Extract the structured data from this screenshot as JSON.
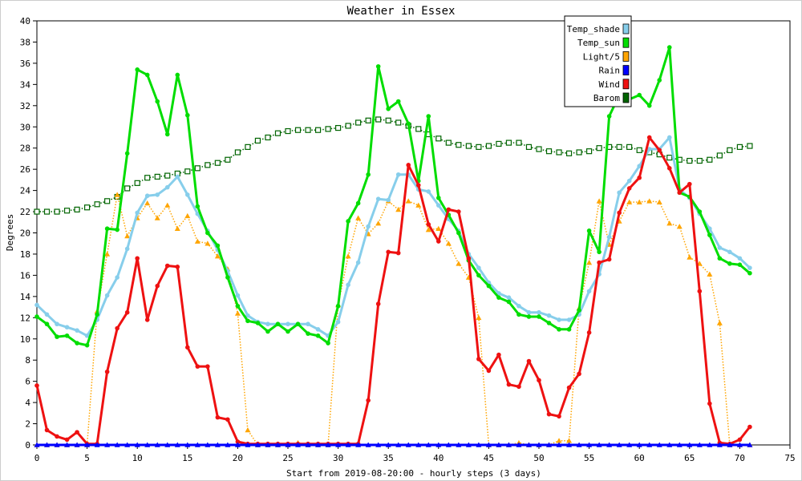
{
  "chart_data": {
    "type": "line",
    "title": "Weather in Essex",
    "xlabel": "Start from 2019-08-20:00 - hourly steps (3 days)",
    "ylabel": "Degrees",
    "xlim": [
      0,
      75
    ],
    "ylim": [
      0,
      40
    ],
    "x_ticks": [
      0,
      5,
      10,
      15,
      20,
      25,
      30,
      35,
      40,
      45,
      50,
      55,
      60,
      65,
      70,
      75
    ],
    "y_ticks": [
      0,
      2,
      4,
      6,
      8,
      10,
      12,
      14,
      16,
      18,
      20,
      22,
      24,
      26,
      28,
      30,
      32,
      34,
      36,
      38,
      40
    ],
    "grid": false,
    "legend_position": "top-right",
    "x": [
      0,
      1,
      2,
      3,
      4,
      5,
      6,
      7,
      8,
      9,
      10,
      11,
      12,
      13,
      14,
      15,
      16,
      17,
      18,
      19,
      20,
      21,
      22,
      23,
      24,
      25,
      26,
      27,
      28,
      29,
      30,
      31,
      32,
      33,
      34,
      35,
      36,
      37,
      38,
      39,
      40,
      41,
      42,
      43,
      44,
      45,
      46,
      47,
      48,
      49,
      50,
      51,
      52,
      53,
      54,
      55,
      56,
      57,
      58,
      59,
      60,
      61,
      62,
      63,
      64,
      65,
      66,
      67,
      68,
      69,
      70,
      71
    ],
    "series": [
      {
        "name": "Temp_shade",
        "color": "#87ceeb",
        "style": "solid",
        "marker": "circle",
        "values": [
          13.2,
          12.3,
          11.4,
          11.1,
          10.8,
          10.3,
          11.8,
          14.1,
          15.8,
          18.5,
          21.9,
          23.5,
          23.6,
          24.3,
          25.3,
          23.6,
          21.8,
          20.2,
          18.4,
          16.4,
          14.1,
          12.2,
          11.6,
          11.4,
          11.4,
          11.4,
          11.4,
          11.4,
          10.9,
          10.3,
          11.6,
          15.1,
          17.2,
          20.6,
          23.2,
          23.1,
          25.5,
          25.5,
          24.1,
          23.9,
          22.6,
          21.3,
          20.2,
          18.0,
          16.7,
          15.3,
          14.3,
          13.9,
          13.1,
          12.5,
          12.5,
          12.2,
          11.8,
          11.8,
          12.3,
          14.5,
          16.1,
          19.6,
          23.8,
          24.9,
          26.3,
          27.9,
          27.9,
          29.0,
          24.1,
          23.3,
          21.8,
          20.4,
          18.6,
          18.2,
          17.6,
          16.7
        ]
      },
      {
        "name": "Temp_sun",
        "color": "#00dd00",
        "style": "solid",
        "marker": "circle",
        "values": [
          12.1,
          11.4,
          10.2,
          10.3,
          9.6,
          9.4,
          12.3,
          20.4,
          20.3,
          27.5,
          35.4,
          34.9,
          32.4,
          29.3,
          34.9,
          31.1,
          22.5,
          20.0,
          18.8,
          15.8,
          13.1,
          11.7,
          11.5,
          10.7,
          11.4,
          10.7,
          11.4,
          10.5,
          10.3,
          9.6,
          13.1,
          21.1,
          22.8,
          25.5,
          35.7,
          31.7,
          32.4,
          30.3,
          24.9,
          31.0,
          23.3,
          21.7,
          20.0,
          17.4,
          16.0,
          15.0,
          13.9,
          13.5,
          12.3,
          12.1,
          12.1,
          11.5,
          10.9,
          10.9,
          12.7,
          20.2,
          18.2,
          31.0,
          33.0,
          32.6,
          33.0,
          32.0,
          34.4,
          37.5,
          23.8,
          23.4,
          22.0,
          19.8,
          17.6,
          17.1,
          17.0,
          16.2
        ]
      },
      {
        "name": "Light/5",
        "color": "#ffa500",
        "style": "dotted",
        "marker": "triangle",
        "values": [
          0,
          0,
          0,
          0,
          0,
          0,
          12.6,
          18.0,
          23.6,
          19.7,
          21.4,
          22.8,
          21.4,
          22.6,
          20.4,
          21.6,
          19.2,
          19.0,
          17.8,
          16.6,
          12.4,
          1.4,
          0,
          0,
          0,
          0,
          0.2,
          0,
          0,
          0,
          13.2,
          17.8,
          21.4,
          19.9,
          20.9,
          23.0,
          22.2,
          23.0,
          22.6,
          20.3,
          20.4,
          19.0,
          17.1,
          15.8,
          12.0,
          0,
          0,
          0,
          0.2,
          0,
          0,
          0,
          0.4,
          0.4,
          12.9,
          17.2,
          23.0,
          18.9,
          21.1,
          22.9,
          22.9,
          23.0,
          22.9,
          20.9,
          20.6,
          17.7,
          17.1,
          16.1,
          11.5,
          0,
          0,
          0
        ]
      },
      {
        "name": "Rain",
        "color": "#0000ff",
        "style": "solid",
        "marker": "triangle",
        "values": [
          0,
          0,
          0,
          0,
          0,
          0,
          0,
          0,
          0,
          0,
          0,
          0,
          0,
          0,
          0,
          0,
          0,
          0,
          0,
          0,
          0,
          0,
          0,
          0,
          0,
          0,
          0,
          0,
          0,
          0,
          0,
          0,
          0,
          0,
          0,
          0,
          0,
          0,
          0,
          0,
          0,
          0,
          0,
          0,
          0,
          0,
          0,
          0,
          0,
          0,
          0,
          0,
          0,
          0,
          0,
          0,
          0,
          0,
          0,
          0,
          0,
          0,
          0,
          0,
          0,
          0,
          0,
          0,
          0,
          0,
          0,
          0
        ]
      },
      {
        "name": "Wind",
        "color": "#ee1111",
        "style": "solid",
        "marker": "circle",
        "values": [
          5.6,
          1.4,
          0.8,
          0.5,
          1.2,
          0.1,
          0.1,
          6.9,
          11.0,
          12.5,
          17.6,
          11.8,
          15.0,
          16.9,
          16.8,
          9.2,
          7.4,
          7.4,
          2.6,
          2.4,
          0.3,
          0.1,
          0.1,
          0.1,
          0.1,
          0.1,
          0.1,
          0.1,
          0.1,
          0.1,
          0.1,
          0.1,
          0.1,
          4.2,
          13.3,
          18.2,
          18.1,
          26.4,
          24.5,
          20.8,
          19.2,
          22.2,
          22.0,
          17.6,
          8.1,
          7.0,
          8.5,
          5.7,
          5.5,
          7.9,
          6.1,
          2.9,
          2.7,
          5.4,
          6.7,
          10.6,
          17.2,
          17.5,
          21.9,
          24.2,
          25.2,
          29.0,
          27.8,
          26.1,
          23.8,
          24.6,
          14.5,
          3.9,
          0.2,
          0.1,
          0.5,
          1.7
        ]
      },
      {
        "name": "Barom",
        "color": "#006400",
        "style": "dotted",
        "marker": "square",
        "values": [
          22.0,
          22.0,
          22.0,
          22.1,
          22.2,
          22.4,
          22.7,
          23.0,
          23.4,
          24.2,
          24.7,
          25.2,
          25.3,
          25.4,
          25.6,
          25.8,
          26.1,
          26.4,
          26.6,
          26.9,
          27.6,
          28.1,
          28.7,
          29.0,
          29.4,
          29.6,
          29.7,
          29.7,
          29.7,
          29.8,
          29.9,
          30.1,
          30.4,
          30.6,
          30.7,
          30.6,
          30.4,
          30.1,
          29.8,
          29.3,
          28.9,
          28.5,
          28.3,
          28.2,
          28.1,
          28.2,
          28.4,
          28.5,
          28.5,
          28.1,
          27.9,
          27.7,
          27.6,
          27.5,
          27.6,
          27.7,
          28.0,
          28.1,
          28.1,
          28.1,
          27.8,
          27.6,
          27.4,
          27.1,
          26.9,
          26.8,
          26.8,
          26.9,
          27.3,
          27.8,
          28.1,
          28.2
        ]
      }
    ]
  }
}
